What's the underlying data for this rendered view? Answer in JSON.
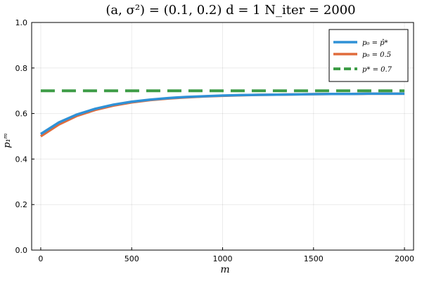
{
  "chart_data": {
    "type": "line",
    "title": "(a, σ²) = (0.1, 0.2)      d = 1      N_iter = 2000",
    "xlabel": "m",
    "ylabel": "p₁ᵐ",
    "xlim": [
      -50,
      2050
    ],
    "ylim": [
      0.0,
      1.0
    ],
    "xticks": [
      0,
      500,
      1000,
      1500,
      2000
    ],
    "yticks": [
      0.0,
      0.2,
      0.4,
      0.6,
      0.8,
      1.0
    ],
    "xtick_labels": [
      "0",
      "500",
      "1000",
      "1500",
      "2000"
    ],
    "ytick_labels": [
      "0.0",
      "0.2",
      "0.4",
      "0.6",
      "0.8",
      "1.0"
    ],
    "grid": true,
    "legend_position": "top-right",
    "series": [
      {
        "name": "p₀ = p̂*",
        "color": "#2f91d6",
        "style": "solid",
        "x": [
          0,
          100,
          200,
          300,
          400,
          500,
          600,
          700,
          800,
          900,
          1000,
          1100,
          1200,
          1300,
          1400,
          1500,
          1600,
          1700,
          1800,
          1900,
          2000
        ],
        "y": [
          0.51,
          0.561,
          0.596,
          0.621,
          0.639,
          0.652,
          0.661,
          0.668,
          0.673,
          0.676,
          0.679,
          0.681,
          0.682,
          0.683,
          0.684,
          0.685,
          0.686,
          0.686,
          0.687,
          0.687,
          0.687
        ]
      },
      {
        "name": "p₀ = 0.5",
        "color": "#e06c3c",
        "style": "solid",
        "x": [
          0,
          100,
          200,
          300,
          400,
          500,
          600,
          700,
          800,
          900,
          1000,
          1100,
          1200,
          1300,
          1400,
          1500,
          1600,
          1700,
          1800,
          1900,
          2000
        ],
        "y": [
          0.5,
          0.552,
          0.59,
          0.616,
          0.635,
          0.649,
          0.659,
          0.666,
          0.671,
          0.675,
          0.678,
          0.68,
          0.682,
          0.683,
          0.684,
          0.685,
          0.686,
          0.686,
          0.687,
          0.687,
          0.687
        ]
      },
      {
        "name": "p* = 0.7",
        "color": "#3d9c46",
        "style": "dashed",
        "x": [
          0,
          2000
        ],
        "y": [
          0.7,
          0.7
        ]
      }
    ]
  }
}
